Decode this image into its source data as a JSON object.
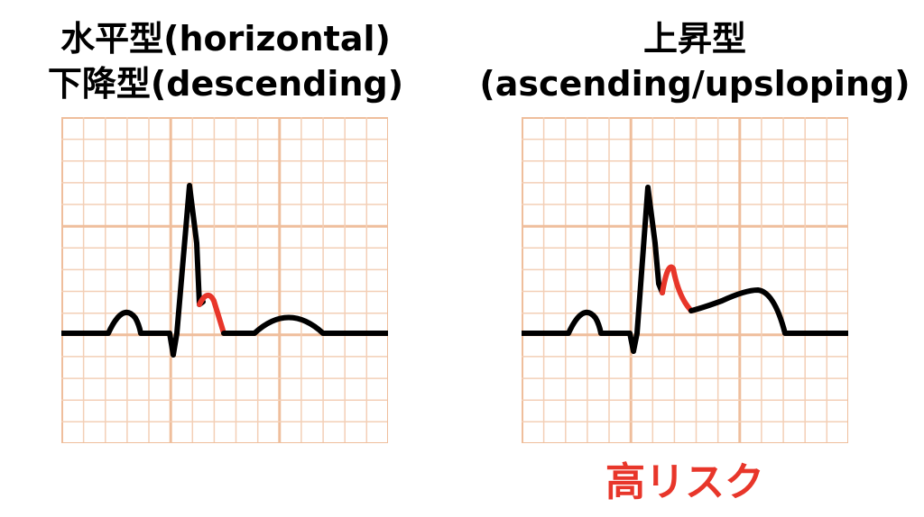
{
  "left": {
    "title_line1": "水平型(horizontal)",
    "title_line2": "下降型(descending)"
  },
  "right": {
    "title_line1": "上昇型",
    "title_line2": "(ascending/upsloping)",
    "risk_label": "高リスク"
  },
  "colors": {
    "grid_minor": "#f3cfb6",
    "grid_major": "#efbe9c",
    "trace": "#000000",
    "st_segment": "#e8362a",
    "risk_text": "#e8362a"
  }
}
